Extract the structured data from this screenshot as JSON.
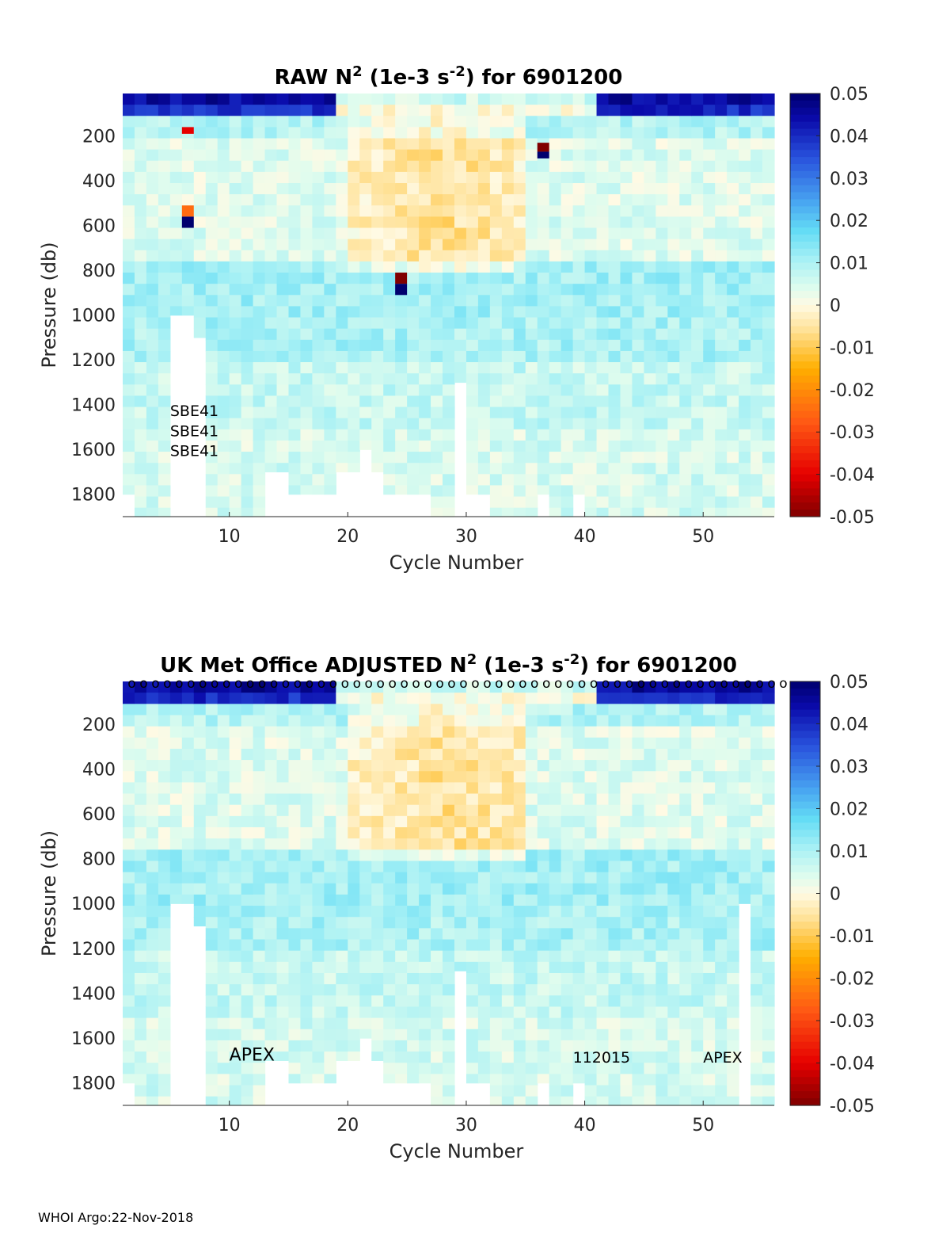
{
  "footer": "WHOI Argo:22-Nov-2018",
  "chart_data": [
    {
      "type": "heatmap",
      "title_parts": [
        "RAW N",
        "2",
        " (1e-3 s",
        "-2",
        ") for 6901200"
      ],
      "xlabel": "Cycle Number",
      "ylabel": "Pressure (db)",
      "xlim": [
        1,
        56
      ],
      "ylim": [
        1900,
        10
      ],
      "x_ticks": [
        10,
        20,
        30,
        40,
        50
      ],
      "y_ticks": [
        200,
        400,
        600,
        800,
        1000,
        1200,
        1400,
        1600,
        1800
      ],
      "colorbar": {
        "min": -0.05,
        "max": 0.05,
        "ticks": [
          "0.05",
          "0.04",
          "0.03",
          "0.02",
          "0.01",
          "0",
          "-0.01",
          "-0.02",
          "-0.03",
          "-0.04",
          "-0.05"
        ]
      },
      "max_pressure": [
        1800,
        1900,
        1900,
        1900,
        1000,
        1000,
        1100,
        1900,
        1900,
        1900,
        1900,
        1900,
        1700,
        1700,
        1800,
        1800,
        1800,
        1800,
        1700,
        1700,
        1600,
        1700,
        1800,
        1800,
        1800,
        1800,
        1900,
        1900,
        1300,
        1800,
        1800,
        1900,
        1900,
        1900,
        1900,
        1800,
        1900,
        1900,
        1800,
        1900,
        1900,
        1900,
        1900,
        1900,
        1900,
        1900,
        1900,
        1900,
        1900,
        1900,
        1900,
        1900,
        1900,
        1900,
        1900
      ],
      "outliers": [
        {
          "cycle": 6,
          "p0": 160,
          "p1": 190,
          "value": -0.04
        },
        {
          "cycle": 6,
          "p0": 510,
          "p1": 560,
          "value": -0.025
        },
        {
          "cycle": 6,
          "p0": 560,
          "p1": 610,
          "value": 0.05
        },
        {
          "cycle": 24,
          "p0": 810,
          "p1": 860,
          "value": -0.05
        },
        {
          "cycle": 24,
          "p0": 860,
          "p1": 910,
          "value": 0.05
        },
        {
          "cycle": 36,
          "p0": 230,
          "p1": 270,
          "value": -0.05
        },
        {
          "cycle": 36,
          "p0": 270,
          "p1": 300,
          "value": 0.05
        }
      ],
      "annotations": [
        {
          "text": "SBE41",
          "cycle": 5,
          "pressure": 1450
        },
        {
          "text": "SBE41",
          "cycle": 5,
          "pressure": 1540
        },
        {
          "text": "SBE41",
          "cycle": 5,
          "pressure": 1630
        }
      ]
    },
    {
      "type": "heatmap",
      "title_parts": [
        "UK Met Office  ADJUSTED N",
        "2",
        " (1e-3 s",
        "-2",
        ") for 6901200"
      ],
      "xlabel": "Cycle Number",
      "ylabel": "Pressure (db)",
      "xlim": [
        1,
        56
      ],
      "ylim": [
        1900,
        10
      ],
      "x_ticks": [
        10,
        20,
        30,
        40,
        50
      ],
      "y_ticks": [
        200,
        400,
        600,
        800,
        1000,
        1200,
        1400,
        1600,
        1800
      ],
      "colorbar": {
        "min": -0.05,
        "max": 0.05,
        "ticks": [
          "0.05",
          "0.04",
          "0.03",
          "0.02",
          "0.01",
          "0",
          "-0.01",
          "-0.02",
          "-0.03",
          "-0.04",
          "-0.05"
        ]
      },
      "max_pressure": [
        1800,
        1900,
        1900,
        1900,
        1000,
        1000,
        1100,
        1900,
        1900,
        1900,
        1900,
        1900,
        1700,
        1700,
        1800,
        1800,
        1800,
        1800,
        1700,
        1700,
        1600,
        1700,
        1800,
        1800,
        1800,
        1800,
        1900,
        1900,
        1300,
        1800,
        1800,
        1900,
        1900,
        1900,
        1900,
        1800,
        1900,
        1900,
        1800,
        1900,
        1900,
        1900,
        1900,
        1900,
        1900,
        1900,
        1900,
        1900,
        1900,
        1900,
        1900,
        1900,
        1000,
        1900,
        1900
      ],
      "outliers": [],
      "qc_markers": {
        "symbol": "o",
        "pressure": 10,
        "cycles_from": 1,
        "cycles_to": 56
      },
      "annotations": [
        {
          "text": "APEX",
          "cycle": 10,
          "pressure": 1700,
          "large": true
        },
        {
          "text": "112015",
          "cycle": 39,
          "pressure": 1710,
          "large": false
        },
        {
          "text": "APEX",
          "cycle": 50,
          "pressure": 1710,
          "large": false
        }
      ]
    }
  ]
}
